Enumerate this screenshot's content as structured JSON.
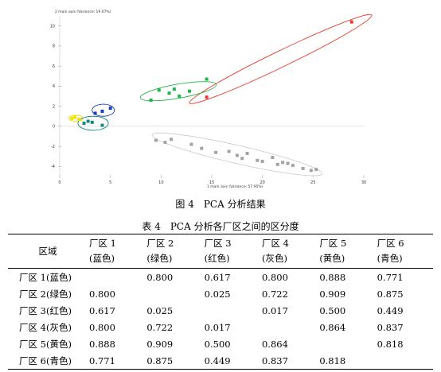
{
  "chart_data": {
    "type": "scatter",
    "title": "",
    "xlabel": "1 main axis (Variance: 57.95%)",
    "ylabel": "2 main axis (Variance: 19.07%)",
    "xlim": [
      0,
      30
    ],
    "ylim": [
      -5,
      11
    ],
    "xticks": [
      0,
      5,
      10,
      15,
      20,
      25,
      30
    ],
    "yticks": [
      -4,
      -2,
      0,
      2,
      4,
      6,
      8,
      10
    ],
    "grid": false,
    "series": [
      {
        "color": "#e8392a",
        "x": [
          14.5,
          28.8
        ],
        "y": [
          2.9,
          10.4
        ]
      },
      {
        "color": "#22b34a",
        "x": [
          9.0,
          9.8,
          10.8,
          11.3,
          11.8,
          12.8,
          14.5
        ],
        "y": [
          2.6,
          3.6,
          3.3,
          3.7,
          3.0,
          3.5,
          4.7
        ]
      },
      {
        "color": "#1a3fb8",
        "x": [
          3.5,
          4.2,
          5.0
        ],
        "y": [
          1.3,
          1.5,
          1.8
        ]
      },
      {
        "color": "#f2e300",
        "x": [
          1.2,
          1.5,
          1.9
        ],
        "y": [
          0.8,
          0.9,
          0.7
        ]
      },
      {
        "color": "#138a7a",
        "x": [
          2.4,
          2.8,
          3.2,
          4.2
        ],
        "y": [
          0.3,
          0.5,
          0.4,
          0.1
        ]
      },
      {
        "color": "#a3a3a3",
        "x": [
          9.5,
          10.4,
          11.0,
          13.0,
          14.0,
          15.4,
          16.7,
          17.5,
          18.0,
          18.5,
          19.5,
          20.0,
          21.0,
          21.5,
          22.0,
          22.5,
          23.0,
          24.0,
          24.8,
          25.3
        ],
        "y": [
          -1.4,
          -1.6,
          -1.3,
          -1.8,
          -2.2,
          -2.6,
          -2.5,
          -2.9,
          -3.2,
          -2.7,
          -3.4,
          -3.5,
          -3.1,
          -3.8,
          -3.6,
          -3.7,
          -3.9,
          -4.2,
          -4.4,
          -4.3
        ]
      }
    ],
    "ellipses": [
      {
        "color": "#e8392a",
        "cx": 21.8,
        "cy": 6.7,
        "rx": 10.0,
        "ry": 0.8,
        "angle_deg": 26
      },
      {
        "color": "#22b34a",
        "cx": 11.7,
        "cy": 3.5,
        "rx": 3.8,
        "ry": 0.7,
        "angle_deg": 10
      },
      {
        "color": "#1a3fb8",
        "cx": 4.3,
        "cy": 1.6,
        "rx": 1.1,
        "ry": 0.6,
        "angle_deg": 0
      },
      {
        "color": "#f2e300",
        "cx": 1.6,
        "cy": 0.8,
        "rx": 0.7,
        "ry": 0.3,
        "angle_deg": 0
      },
      {
        "color": "#138a7a",
        "cx": 3.3,
        "cy": 0.3,
        "rx": 1.5,
        "ry": 0.7,
        "angle_deg": 0
      },
      {
        "color": "#cfcfcf",
        "cx": 17.5,
        "cy": -2.8,
        "rx": 8.6,
        "ry": 0.9,
        "angle_deg": -13
      }
    ]
  },
  "figure_caption": "图 4　PCA 分析结果",
  "table": {
    "caption": "表 4　PCA 分析各厂区之间的区分度",
    "region_header": "区域",
    "columns": [
      {
        "name": "厂区 1",
        "color_label": "(蓝色)"
      },
      {
        "name": "厂区 2",
        "color_label": "(绿色)"
      },
      {
        "name": "厂区 3",
        "color_label": "(红色)"
      },
      {
        "name": "厂区 4",
        "color_label": "(灰色)"
      },
      {
        "name": "厂区 5",
        "color_label": "(黄色)"
      },
      {
        "name": "厂区 6",
        "color_label": "(青色)"
      }
    ],
    "rows": [
      {
        "label": "厂区 1(蓝色)",
        "values": [
          "",
          "0.800",
          "0.617",
          "0.800",
          "0.888",
          "0.771"
        ]
      },
      {
        "label": "厂区 2(绿色)",
        "values": [
          "0.800",
          "",
          "0.025",
          "0.722",
          "0.909",
          "0.875"
        ]
      },
      {
        "label": "厂区 3(红色)",
        "values": [
          "0.617",
          "0.025",
          "",
          "0.017",
          "0.500",
          "0.449"
        ]
      },
      {
        "label": "厂区 4(灰色)",
        "values": [
          "0.800",
          "0.722",
          "0.017",
          "",
          "0.864",
          "0.837"
        ]
      },
      {
        "label": "厂区 5(黄色)",
        "values": [
          "0.888",
          "0.909",
          "0.500",
          "0.864",
          "",
          "0.818"
        ]
      },
      {
        "label": "厂区 6(青色)",
        "values": [
          "0.771",
          "0.875",
          "0.449",
          "0.837",
          "0.818",
          ""
        ]
      }
    ]
  }
}
